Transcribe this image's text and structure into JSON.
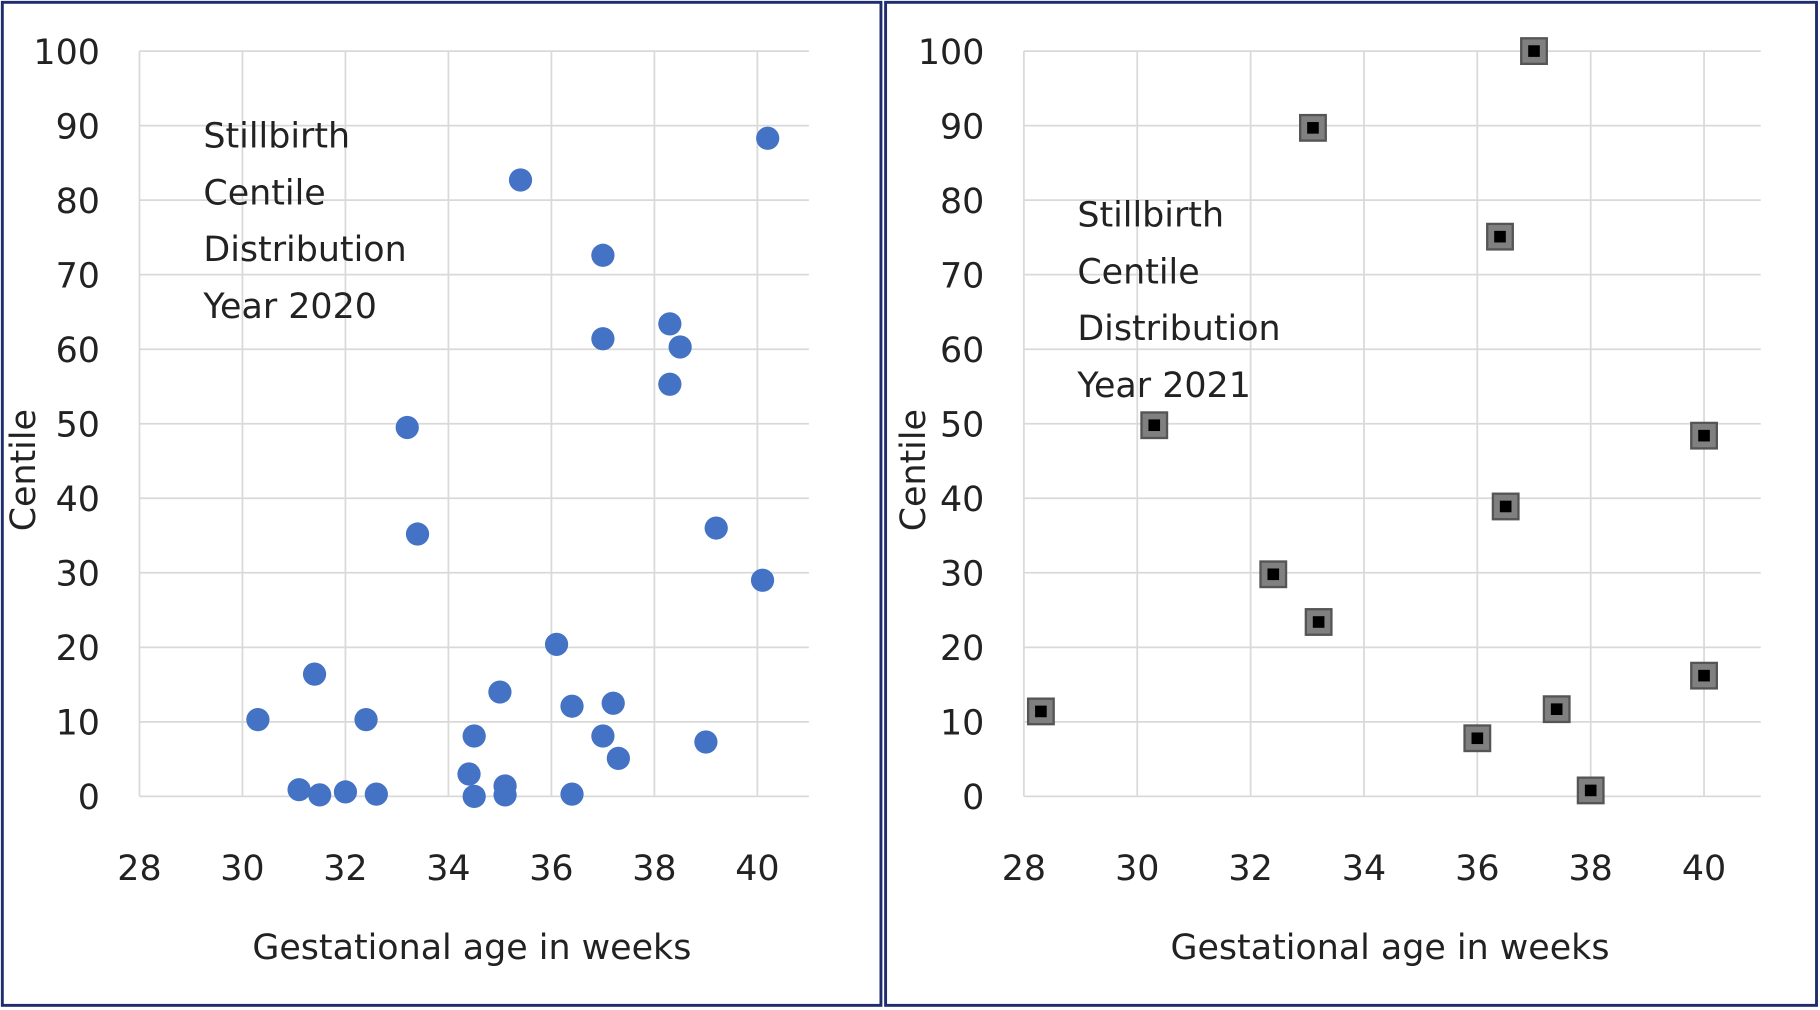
{
  "chart_data": [
    {
      "type": "scatter",
      "annotation": [
        "Stillbirth",
        "Centile",
        "Distribution",
        "Year 2020"
      ],
      "xlabel": "Gestational age in weeks",
      "ylabel": "Centile",
      "x": [
        30.3,
        31.1,
        31.4,
        31.5,
        32.0,
        32.4,
        32.6,
        33.2,
        33.4,
        34.4,
        34.5,
        34.5,
        35.0,
        35.1,
        35.1,
        35.4,
        36.1,
        36.4,
        36.4,
        37.0,
        37.0,
        37.0,
        37.2,
        37.3,
        38.3,
        38.3,
        38.5,
        39.0,
        39.2,
        40.1,
        40.2
      ],
      "values": [
        10.3,
        0.9,
        16.4,
        0.2,
        0.6,
        10.3,
        0.3,
        49.5,
        35.2,
        3.0,
        8.1,
        0,
        14.0,
        1.4,
        0.2,
        82.7,
        20.4,
        12.1,
        0.3,
        72.6,
        61.4,
        8.1,
        12.5,
        5.1,
        63.4,
        55.3,
        60.3,
        7.3,
        36.0,
        29.0,
        88.3
      ],
      "color": "#4472c4",
      "marker": "circle",
      "xlim": [
        28,
        41
      ],
      "xticks": [
        28,
        30,
        32,
        34,
        36,
        38,
        40
      ],
      "ylim": [
        0,
        100
      ],
      "yticks": [
        0,
        10,
        20,
        30,
        40,
        50,
        60,
        70,
        80,
        90,
        100
      ],
      "grid": true
    },
    {
      "type": "scatter",
      "annotation": [
        "Stillbirth",
        "Centile",
        "Distribution",
        "Year 2021"
      ],
      "xlabel": "Gestational age in weeks",
      "ylabel": "Centile",
      "x": [
        28.3,
        30.3,
        32.4,
        33.1,
        33.2,
        36.0,
        36.4,
        36.5,
        37.0,
        37.4,
        38.0,
        40.0,
        40.0
      ],
      "values": [
        11.4,
        49.8,
        29.8,
        89.7,
        23.4,
        7.8,
        75.1,
        38.9,
        100,
        11.7,
        0.8,
        48.4,
        16.2
      ],
      "color": "#808080",
      "marker": "square",
      "xlim": [
        28,
        41
      ],
      "xticks": [
        28,
        30,
        32,
        34,
        36,
        38,
        40
      ],
      "ylim": [
        0,
        100
      ],
      "yticks": [
        0,
        10,
        20,
        30,
        40,
        50,
        60,
        70,
        80,
        90,
        100
      ],
      "grid": true
    }
  ]
}
